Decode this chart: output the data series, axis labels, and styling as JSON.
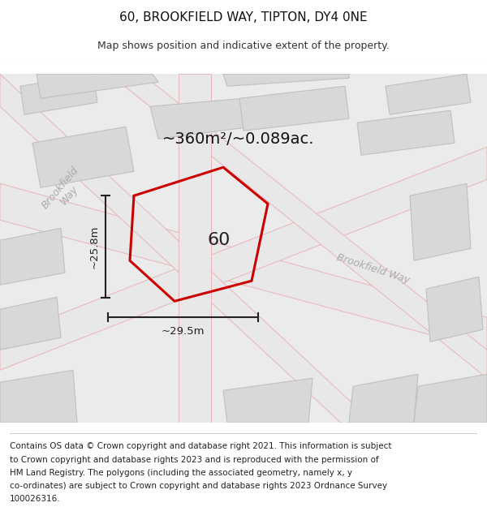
{
  "title": "60, BROOKFIELD WAY, TIPTON, DY4 0NE",
  "subtitle": "Map shows position and indicative extent of the property.",
  "area_text": "~360m²/~0.089ac.",
  "label_60": "60",
  "width_label": "~29.5m",
  "height_label": "~25.8m",
  "footer_lines": [
    "Contains OS data © Crown copyright and database right 2021. This information is subject",
    "to Crown copyright and database rights 2023 and is reproduced with the permission of",
    "HM Land Registry. The polygons (including the associated geometry, namely x, y",
    "co-ordinates) are subject to Crown copyright and database rights 2023 Ordnance Survey",
    "100026316."
  ],
  "map_bg": "#ebebeb",
  "fig_bg": "#ffffff",
  "road_color": "#e8b4b8",
  "block_color": "#d8d8d8",
  "block_edge": "#c0c0c0",
  "property_color": "#cc0000",
  "dim_color": "#222222",
  "street_label_color": "#aaaaaa",
  "title_fontsize": 11,
  "subtitle_fontsize": 9,
  "footer_fontsize": 7.5
}
